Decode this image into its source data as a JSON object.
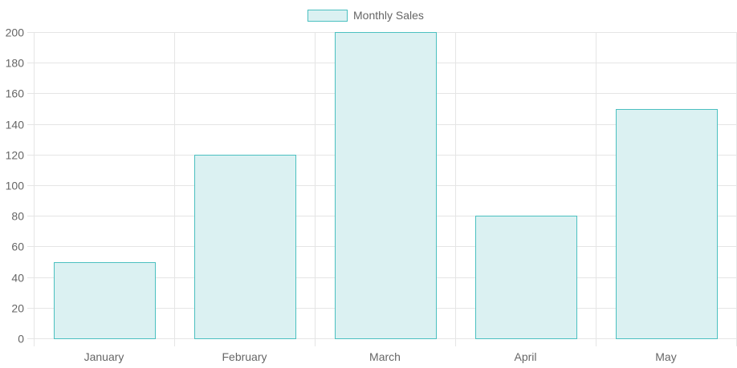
{
  "chart_data": {
    "type": "bar",
    "categories": [
      "January",
      "February",
      "March",
      "April",
      "May"
    ],
    "series": [
      {
        "name": "Monthly Sales",
        "values": [
          50,
          120,
          200,
          80,
          150
        ]
      }
    ],
    "yticks": [
      "0",
      "20",
      "40",
      "60",
      "80",
      "100",
      "120",
      "140",
      "160",
      "180",
      "200"
    ],
    "ylim": [
      0,
      200
    ],
    "grid": true,
    "legend_position": "top-center",
    "colors": {
      "bar_fill": "#dbf1f2",
      "bar_border": "#4bc0c0",
      "grid": "#e5e5e5",
      "tick_text": "#666666"
    }
  }
}
